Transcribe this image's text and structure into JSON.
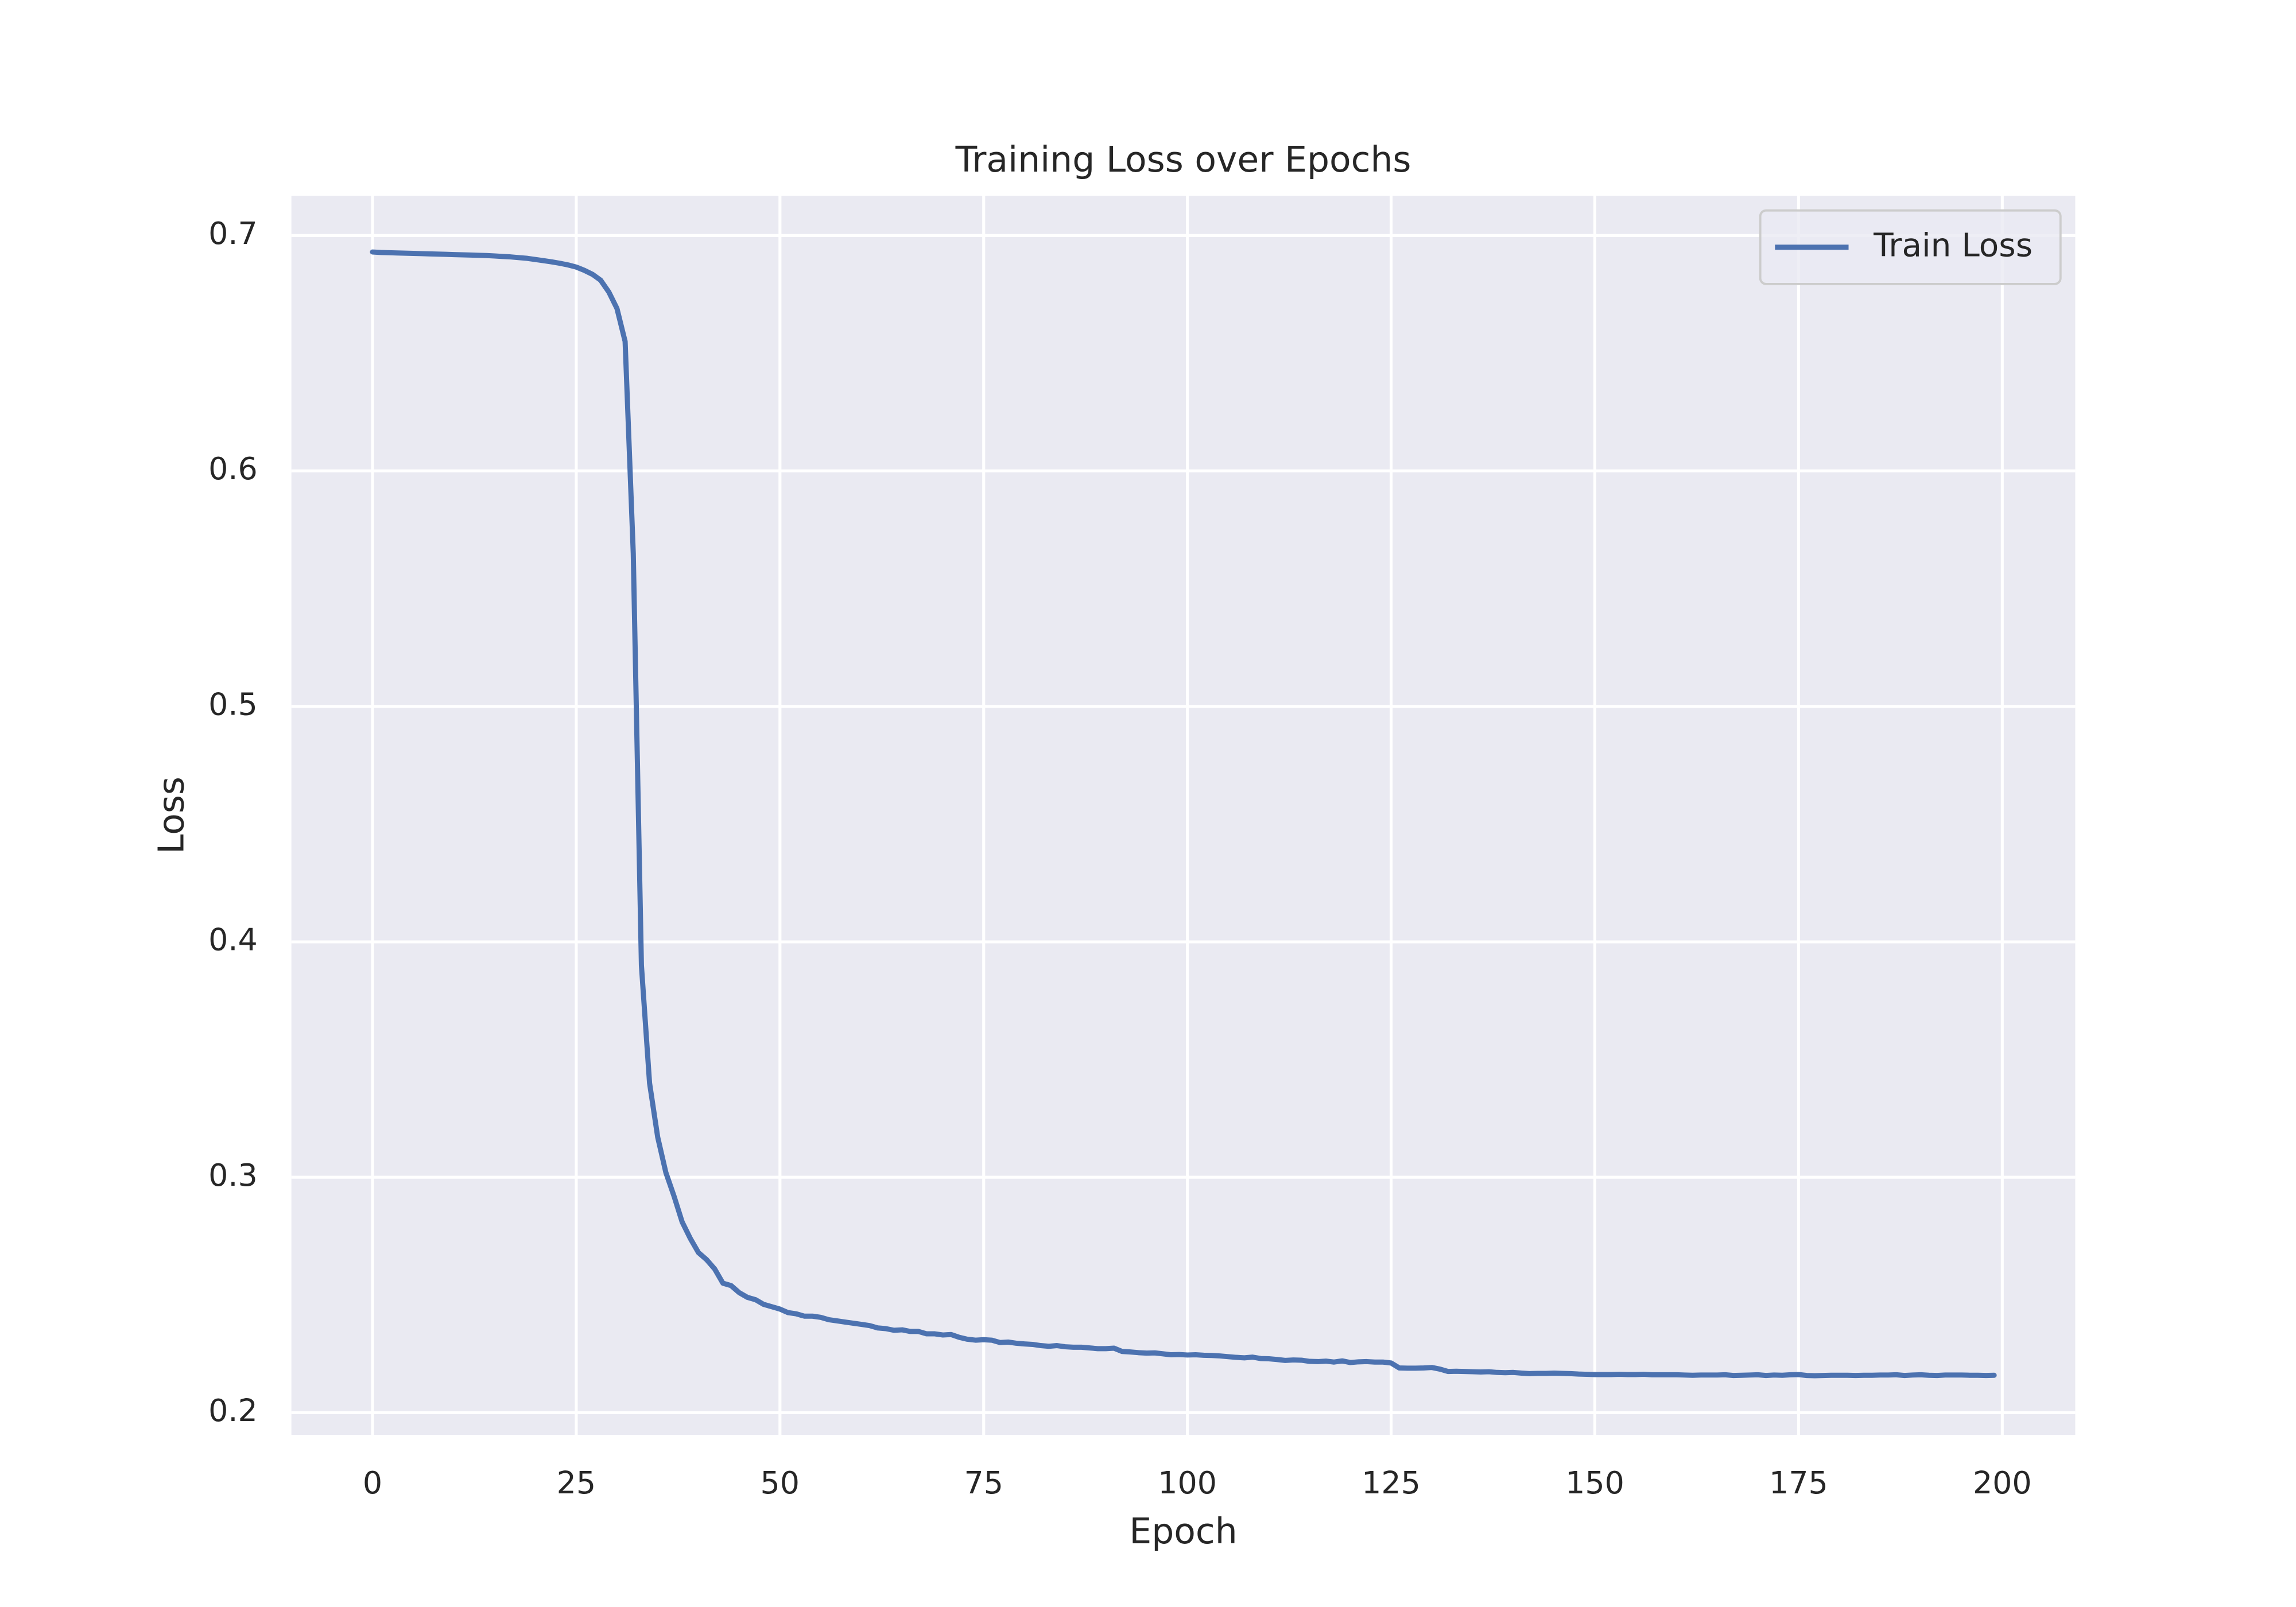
{
  "chart_data": {
    "type": "line",
    "title": "Training Loss over Epochs",
    "x_label": "Epoch",
    "y_label": "Loss",
    "x": [
      0,
      1,
      2,
      3,
      4,
      5,
      6,
      7,
      8,
      9,
      10,
      11,
      12,
      13,
      14,
      15,
      16,
      17,
      18,
      19,
      20,
      21,
      22,
      23,
      24,
      25,
      26,
      27,
      28,
      29,
      30,
      31,
      32,
      33,
      34,
      35,
      36,
      37,
      38,
      39,
      40,
      41,
      42,
      43,
      44,
      45,
      46,
      47,
      48,
      49,
      50,
      51,
      52,
      53,
      54,
      55,
      56,
      57,
      58,
      59,
      60,
      61,
      62,
      63,
      64,
      65,
      66,
      67,
      68,
      69,
      70,
      71,
      72,
      73,
      74,
      75,
      76,
      77,
      78,
      79,
      80,
      81,
      82,
      83,
      84,
      85,
      86,
      87,
      88,
      89,
      90,
      91,
      92,
      93,
      94,
      95,
      96,
      97,
      98,
      99,
      100,
      101,
      102,
      103,
      104,
      105,
      106,
      107,
      108,
      109,
      110,
      111,
      112,
      113,
      114,
      115,
      116,
      117,
      118,
      119,
      120,
      121,
      122,
      123,
      124,
      125,
      126,
      127,
      128,
      129,
      130,
      131,
      132,
      133,
      134,
      135,
      136,
      137,
      138,
      139,
      140,
      141,
      142,
      143,
      144,
      145,
      146,
      147,
      148,
      149,
      150,
      151,
      152,
      153,
      154,
      155,
      156,
      157,
      158,
      159,
      160,
      161,
      162,
      163,
      164,
      165,
      166,
      167,
      168,
      169,
      170,
      171,
      172,
      173,
      174,
      175,
      176,
      177,
      178,
      179,
      180,
      181,
      182,
      183,
      184,
      185,
      186,
      187,
      188,
      189,
      190,
      191,
      192,
      193,
      194,
      195,
      196,
      197,
      198,
      199
    ],
    "series": [
      {
        "name": "Train Loss",
        "color": "#4c72b0",
        "values": [
          0.693,
          0.6928,
          0.6927,
          0.6926,
          0.6925,
          0.6924,
          0.6923,
          0.6922,
          0.6921,
          0.692,
          0.6919,
          0.6918,
          0.6917,
          0.6916,
          0.6915,
          0.6913,
          0.6911,
          0.6909,
          0.6906,
          0.6903,
          0.6898,
          0.6893,
          0.6888,
          0.6882,
          0.6875,
          0.6866,
          0.6852,
          0.6835,
          0.681,
          0.676,
          0.669,
          0.655,
          0.565,
          0.39,
          0.34,
          0.317,
          0.302,
          0.292,
          0.281,
          0.274,
          0.268,
          0.265,
          0.261,
          0.255,
          0.254,
          0.251,
          0.249,
          0.248,
          0.246,
          0.245,
          0.244,
          0.2425,
          0.242,
          0.241,
          0.241,
          0.2405,
          0.2395,
          0.239,
          0.2385,
          0.238,
          0.2375,
          0.237,
          0.236,
          0.2357,
          0.235,
          0.2352,
          0.2345,
          0.2345,
          0.2335,
          0.2335,
          0.233,
          0.2332,
          0.232,
          0.2312,
          0.2308,
          0.231,
          0.2308,
          0.2298,
          0.23,
          0.2295,
          0.2292,
          0.229,
          0.2285,
          0.2282,
          0.2285,
          0.228,
          0.2278,
          0.2278,
          0.2275,
          0.2272,
          0.2272,
          0.2274,
          0.226,
          0.2258,
          0.2255,
          0.2253,
          0.2254,
          0.225,
          0.2246,
          0.2247,
          0.2245,
          0.2246,
          0.2244,
          0.2243,
          0.2241,
          0.2238,
          0.2235,
          0.2233,
          0.2236,
          0.223,
          0.2229,
          0.2226,
          0.2222,
          0.2224,
          0.2223,
          0.2218,
          0.2217,
          0.2219,
          0.2215,
          0.222,
          0.2213,
          0.2216,
          0.2217,
          0.2215,
          0.2215,
          0.2211,
          0.219,
          0.2189,
          0.2189,
          0.219,
          0.2192,
          0.2185,
          0.2175,
          0.2176,
          0.2175,
          0.2174,
          0.2173,
          0.2174,
          0.2171,
          0.217,
          0.2171,
          0.2168,
          0.2166,
          0.2167,
          0.2167,
          0.2168,
          0.2167,
          0.2166,
          0.2164,
          0.2163,
          0.2162,
          0.2162,
          0.2162,
          0.2163,
          0.2162,
          0.2162,
          0.2163,
          0.2161,
          0.2161,
          0.2161,
          0.2161,
          0.216,
          0.2159,
          0.216,
          0.216,
          0.216,
          0.2161,
          0.2158,
          0.2159,
          0.216,
          0.2161,
          0.2158,
          0.216,
          0.2159,
          0.2161,
          0.2162,
          0.2158,
          0.2157,
          0.2158,
          0.2159,
          0.2159,
          0.2159,
          0.2158,
          0.2159,
          0.2159,
          0.216,
          0.216,
          0.2161,
          0.2158,
          0.216,
          0.2161,
          0.2159,
          0.2158,
          0.216,
          0.216,
          0.216,
          0.2159,
          0.2159,
          0.2158,
          0.2159
        ]
      }
    ],
    "xlim": [
      -9.95,
      208.95
    ],
    "ylim": [
      0.1906,
      0.7169
    ],
    "xticks": [
      0,
      25,
      50,
      75,
      100,
      125,
      150,
      175,
      200
    ],
    "yticks": [
      0.2,
      0.3,
      0.4,
      0.5,
      0.6,
      0.7
    ],
    "grid": true,
    "legend": "upper right",
    "background": "#eaeaf2"
  }
}
